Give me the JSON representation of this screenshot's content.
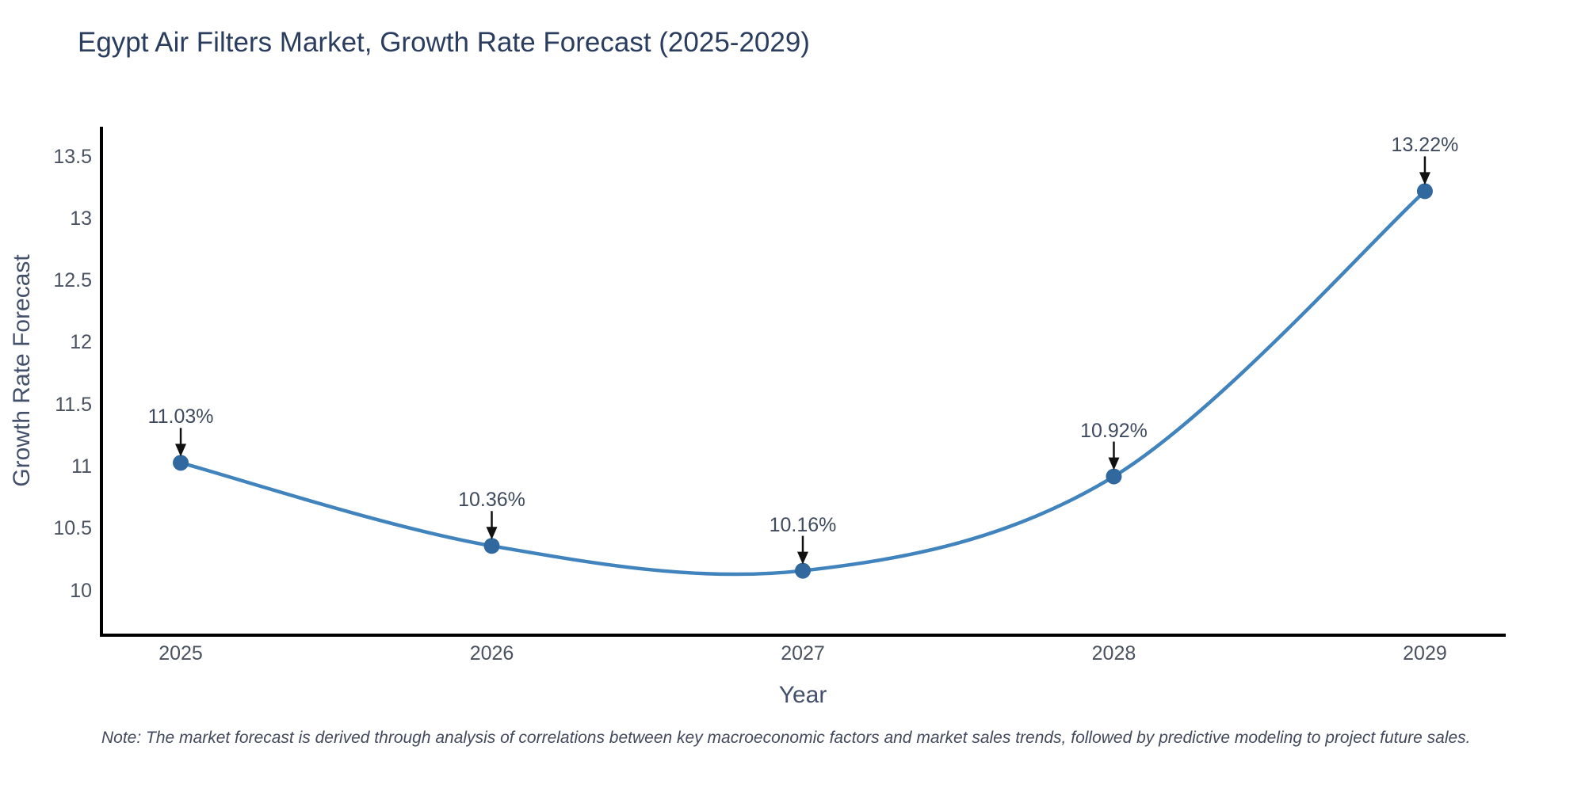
{
  "chart": {
    "title": "Egypt Air Filters Market, Growth Rate Forecast (2025-2029)",
    "note": "Note: The market forecast is derived through analysis of correlations between key macroeconomic factors and market sales trends, followed by predictive modeling to project future sales."
  },
  "chart_data": {
    "type": "line",
    "title": "Egypt Air Filters Market, Growth Rate Forecast (2025-2029)",
    "x": [
      2025,
      2026,
      2027,
      2028,
      2029
    ],
    "categories": [
      "2025",
      "2026",
      "2027",
      "2028",
      "2029"
    ],
    "series": [
      {
        "name": "Growth Rate Forecast",
        "values": [
          11.03,
          10.36,
          10.16,
          10.92,
          13.22
        ]
      }
    ],
    "point_labels": [
      "11.03%",
      "10.36%",
      "10.16%",
      "10.92%",
      "13.22%"
    ],
    "xlabel": "Year",
    "ylabel": "Growth Rate Forecast",
    "y_ticks": [
      10,
      10.5,
      11,
      11.5,
      12,
      12.5,
      13,
      13.5
    ],
    "ylim": [
      9.64,
      13.74
    ],
    "xlim": [
      2024.74,
      2029.26
    ],
    "grid": false,
    "legend": "none",
    "line_style": "smooth-spline",
    "marker_style": "circle",
    "annotation_style": "text-with-down-arrow",
    "colors": {
      "line": "#4083bd",
      "marker": "#31699e",
      "axis_line": "#000000",
      "arrow": "#111111",
      "title_text": "#2b3d5f",
      "tick_text": "#4a5260",
      "axis_title_text": "#44506a",
      "note_text": "#42495b",
      "background": "#ffffff"
    }
  }
}
